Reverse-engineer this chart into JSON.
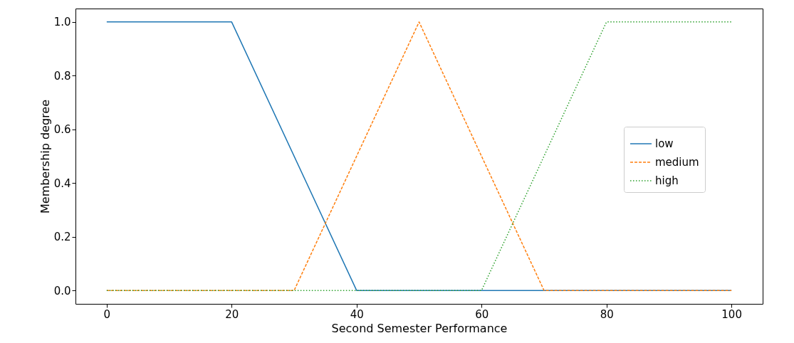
{
  "chart_data": {
    "type": "line",
    "xlabel": "Second Semester Performance",
    "ylabel": "Membership degree",
    "series": [
      {
        "name": "low",
        "color": "#1f77b4",
        "line_style": "solid",
        "x": [
          0,
          20,
          40,
          100
        ],
        "values": [
          1,
          1,
          0,
          0
        ]
      },
      {
        "name": "medium",
        "color": "#ff7f0e",
        "line_style": "dashed",
        "x": [
          0,
          30,
          50,
          70,
          100
        ],
        "values": [
          0,
          0,
          1,
          0,
          0
        ]
      },
      {
        "name": "high",
        "color": "#2ca02c",
        "line_style": "dotted",
        "x": [
          0,
          60,
          80,
          100
        ],
        "values": [
          0,
          0,
          1,
          1
        ]
      }
    ],
    "xlim": [
      -5,
      105
    ],
    "xticks": [
      0,
      20,
      40,
      60,
      80,
      100
    ],
    "ylim": [
      -0.05,
      1.05
    ],
    "yticks": [
      {
        "value": 0,
        "label": "0.0"
      },
      {
        "value": 0.2,
        "label": "0.2"
      },
      {
        "value": 0.4,
        "label": "0.4"
      },
      {
        "value": 0.6,
        "label": "0.6"
      },
      {
        "value": 0.8,
        "label": "0.8"
      },
      {
        "value": 1,
        "label": "1.0"
      }
    ],
    "grid": false,
    "legend": "right"
  }
}
